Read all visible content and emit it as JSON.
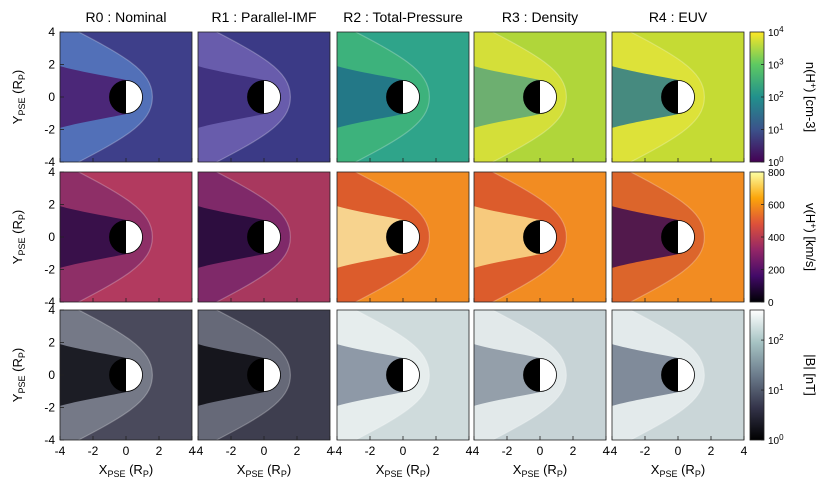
{
  "chart_data": {
    "type": "heatmap",
    "layout": "grid of panels: 3 rows x 5 columns",
    "columns": [
      "R0 : Nominal",
      "R1 : Parallel-IMF",
      "R2 : Total-Pressure",
      "R3 : Density",
      "R4 : EUV"
    ],
    "x_axis": {
      "label_main": "X",
      "label_sub": "PSE",
      "label_unit": "(R",
      "label_unit_sub": "P",
      "label_close": ")",
      "range": [
        -4,
        4
      ],
      "ticks": [
        -4,
        -2,
        0,
        2,
        4
      ]
    },
    "y_axis": {
      "label_main": "Y",
      "label_sub": "PSE",
      "label_unit": "(R",
      "label_unit_sub": "P",
      "label_close": ")",
      "range": [
        -4,
        4
      ],
      "ticks": [
        -4,
        -2,
        0,
        2,
        4
      ]
    },
    "rows": [
      {
        "quantity": "n(H+) [cm-3]",
        "scale": "log",
        "colormap": "viridis",
        "colorbar_ticks": [
          {
            "base": "10",
            "exp": "0",
            "value": 1
          },
          {
            "base": "10",
            "exp": "1",
            "value": 10
          },
          {
            "base": "10",
            "exp": "2",
            "value": 100
          },
          {
            "base": "10",
            "exp": "3",
            "value": 1000
          },
          {
            "base": "10",
            "exp": "4",
            "value": 10000
          }
        ],
        "range": [
          1,
          10000
        ],
        "panel_background": [
          "#3e3f8a",
          "#3b3a86",
          "#2fa48a",
          "#b0d63a",
          "#c5db34"
        ],
        "panel_sheath": [
          "#5476bd",
          "#6e60b0",
          "#3fb47a",
          "#d8e03a",
          "#dfe23a"
        ],
        "panel_wake": [
          "#4a1a6c",
          "#3a2a78",
          "#1f6d8a",
          "#5aa77a",
          "#2b7a8c"
        ]
      },
      {
        "quantity": "v(H+) [km/s]",
        "scale": "linear",
        "colormap": "inferno",
        "colorbar_ticks": [
          {
            "base": "0",
            "exp": "",
            "value": 0
          },
          {
            "base": "200",
            "exp": "",
            "value": 200
          },
          {
            "base": "400",
            "exp": "",
            "value": 400
          },
          {
            "base": "600",
            "exp": "",
            "value": 600
          },
          {
            "base": "800",
            "exp": "",
            "value": 800
          }
        ],
        "range": [
          0,
          800
        ],
        "panel_background": [
          "#b23a5f",
          "#a8385e",
          "#f28c22",
          "#f28c22",
          "#f28c22"
        ],
        "panel_sheath": [
          "#8a2f68",
          "#7a286a",
          "#d9562e",
          "#d9562e",
          "#d9602c"
        ],
        "panel_wake": [
          "#2a0a45",
          "#1e0838",
          "#fbe7a0",
          "#fbdd8c",
          "#3a0c52"
        ]
      },
      {
        "quantity": "|B| [nT]",
        "scale": "log",
        "colormap": "bone",
        "colorbar_ticks": [
          {
            "base": "10",
            "exp": "0",
            "value": 1
          },
          {
            "base": "10",
            "exp": "1",
            "value": 10
          },
          {
            "base": "10",
            "exp": "2",
            "value": 100
          }
        ],
        "range": [
          1,
          400
        ],
        "panel_background": [
          "#4a4a5c",
          "#3e3e4f",
          "#cfdbdc",
          "#c7d3d6",
          "#cad6d8"
        ],
        "panel_sheath": [
          "#7a7e8c",
          "#6a6e7c",
          "#e8eeee",
          "#e4ebec",
          "#e6eced"
        ],
        "panel_wake": [
          "#0d0d14",
          "#08080d",
          "#7e8a9a",
          "#86929f",
          "#6e7a8c"
        ]
      }
    ],
    "planet": "dayside white, nightside black half-disk of radius 1 at origin"
  },
  "colorbar_labels": [
    {
      "pre": "n(H",
      "sup": "+",
      "post": ")  [cm-3]"
    },
    {
      "pre": "v(H",
      "sup": "+",
      "post": ")  [km/s]"
    },
    {
      "pre": "|B|  [nT]",
      "sup": "",
      "post": ""
    }
  ]
}
